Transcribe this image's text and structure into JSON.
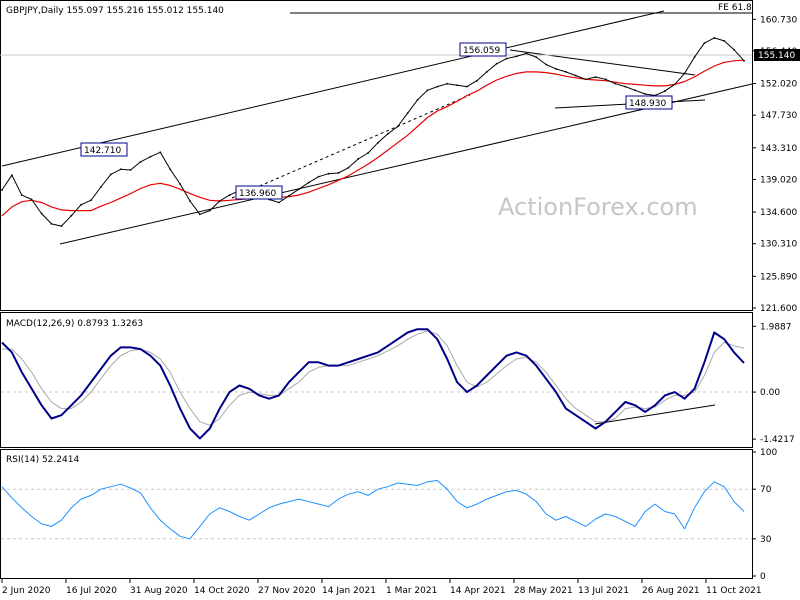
{
  "chart_data": {
    "type": "line",
    "main": {
      "header": "GBPJPY,Daily  155.097 155.216 155.012 155.140",
      "symbol": "GBPJPY",
      "timeframe": "Daily",
      "ohlc": [
        155.097,
        155.216,
        155.012,
        155.14
      ],
      "last_price_label": "155.140",
      "fib_label": "FE 61.8",
      "watermark": "ActionForex.com",
      "ylim": [
        121.6,
        162.8
      ],
      "yticks": [
        "160.730",
        "156.440",
        "152.020",
        "147.730",
        "143.310",
        "139.020",
        "134.600",
        "130.310",
        "125.890",
        "121.600"
      ],
      "annotations": [
        "142.710",
        "156.059",
        "136.960",
        "148.930"
      ],
      "series": [
        {
          "name": "GBPJPY",
          "values": [
            137.6,
            139.6,
            136.9,
            136.3,
            134.4,
            133.0,
            132.7,
            134.1,
            135.6,
            136.2,
            138.0,
            139.7,
            140.4,
            140.3,
            141.4,
            142.1,
            142.7,
            140.4,
            138.4,
            136.1,
            134.3,
            134.8,
            136.1,
            136.9,
            137.5,
            137.3,
            136.8,
            136.3,
            135.9,
            136.8,
            137.7,
            138.6,
            139.4,
            139.8,
            139.9,
            140.6,
            141.8,
            142.6,
            144.0,
            145.2,
            146.2,
            148.0,
            149.8,
            151.1,
            151.6,
            152.0,
            151.8,
            151.6,
            152.4,
            153.6,
            154.7,
            155.4,
            155.7,
            156.1,
            155.6,
            154.6,
            154.0,
            153.6,
            153.1,
            152.6,
            152.9,
            152.6,
            152.0,
            151.6,
            151.1,
            150.6,
            150.4,
            151.0,
            151.9,
            153.4,
            155.6,
            157.5,
            158.2,
            157.8,
            156.6,
            155.1
          ]
        },
        {
          "name": "MA",
          "values": [
            134.1,
            135.3,
            136.0,
            136.2,
            135.9,
            135.3,
            134.9,
            134.8,
            134.8,
            134.8,
            135.4,
            135.9,
            136.5,
            137.1,
            137.8,
            138.3,
            138.5,
            138.2,
            137.7,
            137.1,
            136.6,
            136.2,
            136.1,
            136.2,
            136.3,
            136.4,
            136.4,
            136.5,
            136.6,
            136.7,
            136.9,
            137.3,
            137.8,
            138.3,
            138.9,
            139.5,
            140.3,
            141.1,
            142.0,
            143.0,
            144.0,
            145.0,
            146.2,
            147.4,
            148.3,
            148.9,
            149.6,
            150.4,
            151.0,
            151.8,
            152.5,
            153.0,
            153.4,
            153.6,
            153.6,
            153.5,
            153.3,
            153.0,
            152.8,
            152.6,
            152.5,
            152.4,
            152.2,
            152.0,
            151.9,
            151.8,
            151.7,
            151.7,
            151.9,
            152.3,
            152.9,
            153.7,
            154.4,
            154.9,
            155.1,
            155.2
          ]
        }
      ]
    },
    "macd": {
      "header": "MACD(12,26,9) 0.8793 1.3263",
      "params": "12,26,9",
      "values_shown": [
        0.8793,
        1.3263
      ],
      "ylim": [
        -1.6,
        2.3
      ],
      "yticks": [
        "1.9887",
        "0.00",
        "-1.4217"
      ],
      "series": [
        {
          "name": "MACD",
          "values": [
            1.5,
            1.2,
            0.6,
            0.1,
            -0.4,
            -0.8,
            -0.7,
            -0.4,
            -0.1,
            0.3,
            0.7,
            1.1,
            1.35,
            1.35,
            1.3,
            1.1,
            0.8,
            0.2,
            -0.5,
            -1.1,
            -1.4,
            -1.1,
            -0.5,
            0.0,
            0.2,
            0.1,
            -0.1,
            -0.2,
            -0.1,
            0.3,
            0.6,
            0.9,
            0.9,
            0.8,
            0.8,
            0.9,
            1.0,
            1.1,
            1.2,
            1.4,
            1.6,
            1.8,
            1.9,
            1.9,
            1.6,
            1.0,
            0.3,
            0.0,
            0.2,
            0.5,
            0.8,
            1.1,
            1.2,
            1.1,
            0.8,
            0.4,
            0.0,
            -0.5,
            -0.7,
            -0.9,
            -1.1,
            -0.9,
            -0.6,
            -0.3,
            -0.4,
            -0.6,
            -0.4,
            -0.1,
            0.0,
            -0.2,
            0.1,
            0.9,
            1.8,
            1.6,
            1.2,
            0.88
          ]
        },
        {
          "name": "Signal",
          "values": [
            1.3,
            1.3,
            1.0,
            0.6,
            0.1,
            -0.3,
            -0.5,
            -0.5,
            -0.3,
            0.0,
            0.4,
            0.8,
            1.1,
            1.25,
            1.3,
            1.2,
            1.0,
            0.6,
            0.0,
            -0.5,
            -0.9,
            -1.0,
            -0.8,
            -0.4,
            -0.1,
            0.0,
            -0.05,
            -0.1,
            -0.1,
            0.1,
            0.3,
            0.6,
            0.75,
            0.8,
            0.8,
            0.8,
            0.9,
            1.0,
            1.1,
            1.25,
            1.4,
            1.6,
            1.75,
            1.85,
            1.75,
            1.4,
            0.8,
            0.3,
            0.15,
            0.3,
            0.55,
            0.8,
            1.0,
            1.05,
            0.9,
            0.6,
            0.2,
            -0.2,
            -0.5,
            -0.7,
            -0.9,
            -0.9,
            -0.8,
            -0.5,
            -0.45,
            -0.5,
            -0.45,
            -0.25,
            -0.1,
            -0.1,
            0.0,
            0.5,
            1.2,
            1.5,
            1.4,
            1.33
          ]
        }
      ]
    },
    "rsi": {
      "header": "RSI(14) 52.2414",
      "period": 14,
      "value": 52.2414,
      "ylim": [
        0,
        100
      ],
      "yticks": [
        "100",
        "70",
        "30",
        "0"
      ],
      "levels": [
        70,
        30
      ],
      "series": [
        {
          "name": "RSI",
          "values": [
            72,
            63,
            55,
            48,
            42,
            40,
            45,
            55,
            62,
            65,
            70,
            72,
            74,
            71,
            67,
            55,
            45,
            38,
            32,
            30,
            40,
            50,
            55,
            52,
            48,
            45,
            50,
            55,
            58,
            60,
            62,
            60,
            58,
            56,
            62,
            66,
            68,
            65,
            70,
            72,
            75,
            74,
            73,
            76,
            77,
            70,
            60,
            55,
            58,
            62,
            65,
            68,
            69,
            66,
            60,
            50,
            45,
            48,
            44,
            40,
            46,
            50,
            48,
            44,
            40,
            52,
            58,
            52,
            50,
            38,
            55,
            68,
            76,
            72,
            60,
            52
          ]
        }
      ]
    },
    "x": {
      "labels": [
        "2 Jun 2020",
        "16 Jul 2020",
        "31 Aug 2020",
        "14 Oct 2020",
        "27 Nov 2020",
        "14 Jan 2021",
        "1 Mar 2021",
        "14 Apr 2021",
        "28 May 2021",
        "13 Jul 2021",
        "26 Aug 2021",
        "11 Oct 2021"
      ]
    },
    "colors": {
      "price": "#000000",
      "ma": "#e60000",
      "macd": "#00008b",
      "signal": "#a9a9a9",
      "rsi": "#1e90ff",
      "trend": "#000000",
      "grid": "#c8c8c8",
      "watermark": "#c6c6c6",
      "last_price_box": "#000000"
    }
  }
}
